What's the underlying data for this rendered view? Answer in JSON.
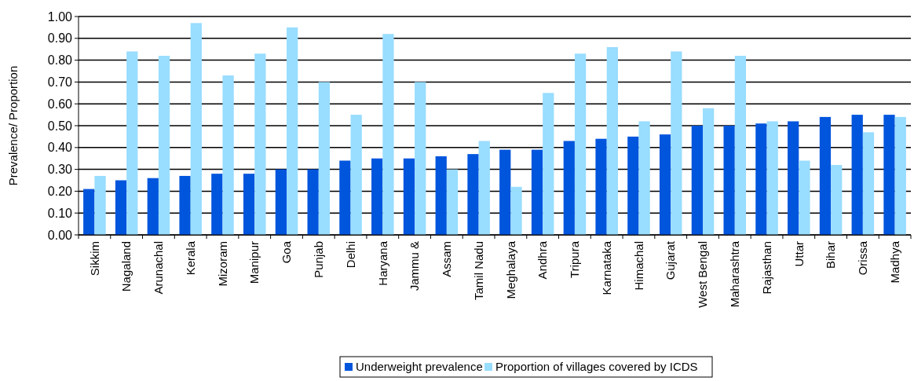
{
  "chart_data": {
    "type": "bar",
    "ylabel": "Prevalence/ Proportion",
    "categories": [
      "Sikkim",
      "Nagaland",
      "Arunachal",
      "Kerala",
      "Mizoram",
      "Manipur",
      "Goa",
      "Punjab",
      "Delhi",
      "Haryana",
      "Jammu &",
      "Assam",
      "Tamil Nadu",
      "Meghalaya",
      "Andhra",
      "Tripura",
      "Karnataka",
      "Himachal",
      "Gujarat",
      "West Bengal",
      "Maharashtra",
      "Rajasthan",
      "Uttar",
      "Bihar",
      "Orissa",
      "Madhya"
    ],
    "series": [
      {
        "name": "Underweight prevalence",
        "color": "#0055dd",
        "values": [
          0.21,
          0.25,
          0.26,
          0.27,
          0.28,
          0.28,
          0.3,
          0.3,
          0.34,
          0.35,
          0.35,
          0.36,
          0.37,
          0.39,
          0.39,
          0.43,
          0.44,
          0.45,
          0.46,
          0.5,
          0.5,
          0.51,
          0.52,
          0.54,
          0.55,
          0.55
        ]
      },
      {
        "name": "Proportion of villages covered by ICDS",
        "color": "#99ddff",
        "values": [
          0.27,
          0.84,
          0.82,
          0.97,
          0.73,
          0.83,
          0.95,
          0.7,
          0.55,
          0.92,
          0.7,
          0.3,
          0.43,
          0.22,
          0.65,
          0.83,
          0.86,
          0.52,
          0.84,
          0.58,
          0.82,
          0.52,
          0.34,
          0.32,
          0.47,
          0.54
        ]
      }
    ],
    "ylim": [
      0,
      1
    ],
    "yticks": [
      {
        "value": 0,
        "label": "0.00"
      },
      {
        "value": 0.1,
        "label": "0.10"
      },
      {
        "value": 0.2,
        "label": "0.20"
      },
      {
        "value": 0.3,
        "label": "0.30"
      },
      {
        "value": 0.4,
        "label": "0.40"
      },
      {
        "value": 0.5,
        "label": "0.50"
      },
      {
        "value": 0.6,
        "label": "0.60"
      },
      {
        "value": 0.7,
        "label": "0.70"
      },
      {
        "value": 0.8,
        "label": "0.80"
      },
      {
        "value": 0.9,
        "label": "0.90"
      },
      {
        "value": 1,
        "label": "1.00"
      }
    ],
    "grid": "y",
    "legend": "bottom"
  }
}
